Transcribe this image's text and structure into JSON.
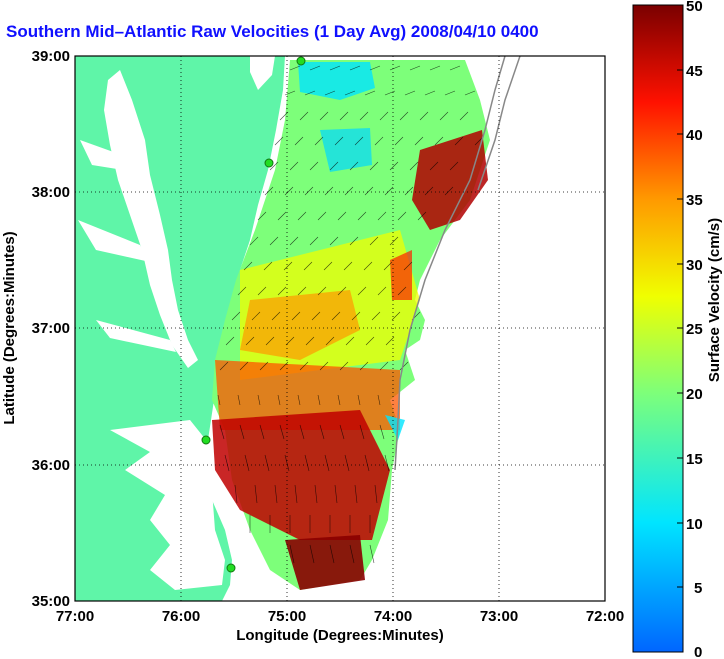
{
  "title": "Southern Mid-Atlantic Raw Velocities (1 Day Avg) 2008/04/10 0400 EST",
  "title_visible": "Southern Mid–Atlantic Raw Velocities (1 Day Avg) 2008/04/10 0400",
  "x_axis": {
    "label": "Longitude (Degrees:Minutes)",
    "ticks": [
      "77:00",
      "76:00",
      "75:00",
      "74:00",
      "73:00",
      "72:00"
    ]
  },
  "y_axis": {
    "label": "Latitude (Degrees:Minutes)",
    "ticks": [
      "39:00",
      "38:00",
      "37:00",
      "36:00",
      "35:00"
    ]
  },
  "colorbar": {
    "label": "Surface Velocity (cm/s)",
    "ticks": [
      "50",
      "45",
      "40",
      "35",
      "30",
      "25",
      "20",
      "15",
      "10",
      "5",
      "0"
    ],
    "range": [
      0,
      50
    ]
  },
  "colors": {
    "land": "#5ff5a8",
    "title": "#1010ff",
    "station": "#22dd22"
  },
  "map": {
    "lon_range": [
      -77,
      -72
    ],
    "lat_range": [
      35,
      39
    ],
    "grid": true
  }
}
